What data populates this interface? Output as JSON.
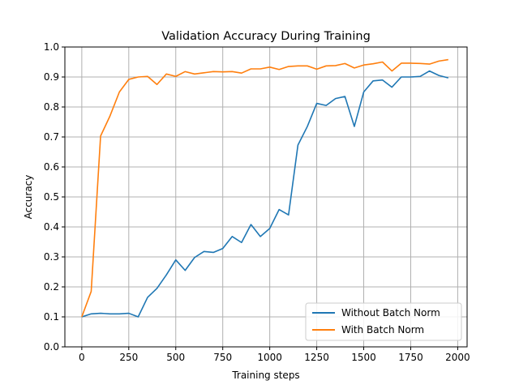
{
  "chart_data": {
    "type": "line",
    "title": "Validation Accuracy During Training",
    "xlabel": "Training steps",
    "ylabel": "Accuracy",
    "xlim": [
      -90,
      2050
    ],
    "ylim": [
      0.0,
      1.0
    ],
    "xticks": [
      0,
      250,
      500,
      750,
      1000,
      1250,
      1500,
      1750,
      2000
    ],
    "yticks": [
      0.0,
      0.1,
      0.2,
      0.3,
      0.4,
      0.5,
      0.6,
      0.7,
      0.8,
      0.9,
      1.0
    ],
    "xtick_labels": [
      "0",
      "250",
      "500",
      "750",
      "1000",
      "1250",
      "1500",
      "1750",
      "2000"
    ],
    "ytick_labels": [
      "0.0",
      "0.1",
      "0.2",
      "0.3",
      "0.4",
      "0.5",
      "0.6",
      "0.7",
      "0.8",
      "0.9",
      "1.0"
    ],
    "grid": true,
    "legend_position": "lower-right",
    "x": [
      0,
      50,
      100,
      150,
      200,
      250,
      300,
      350,
      400,
      450,
      500,
      550,
      600,
      650,
      700,
      750,
      800,
      850,
      900,
      950,
      1000,
      1050,
      1100,
      1150,
      1200,
      1250,
      1300,
      1350,
      1400,
      1450,
      1500,
      1550,
      1600,
      1650,
      1700,
      1750,
      1800,
      1850,
      1900,
      1950
    ],
    "series": [
      {
        "name": "Without Batch Norm",
        "color": "#1f77b4",
        "values": [
          0.1,
          0.11,
          0.112,
          0.11,
          0.11,
          0.112,
          0.1,
          0.165,
          0.195,
          0.24,
          0.29,
          0.255,
          0.298,
          0.318,
          0.315,
          0.328,
          0.368,
          0.348,
          0.408,
          0.368,
          0.395,
          0.458,
          0.44,
          0.673,
          0.735,
          0.812,
          0.805,
          0.828,
          0.835,
          0.735,
          0.85,
          0.887,
          0.89,
          0.866,
          0.9,
          0.9,
          0.902,
          0.92,
          0.905,
          0.897
        ]
      },
      {
        "name": "With Batch Norm",
        "color": "#ff7f0e",
        "values": [
          0.1,
          0.185,
          0.703,
          0.77,
          0.85,
          0.892,
          0.9,
          0.902,
          0.875,
          0.91,
          0.902,
          0.918,
          0.91,
          0.914,
          0.918,
          0.917,
          0.918,
          0.913,
          0.927,
          0.927,
          0.933,
          0.925,
          0.935,
          0.937,
          0.937,
          0.926,
          0.937,
          0.938,
          0.945,
          0.93,
          0.94,
          0.944,
          0.95,
          0.92,
          0.946,
          0.946,
          0.945,
          0.943,
          0.953,
          0.958
        ]
      }
    ]
  }
}
